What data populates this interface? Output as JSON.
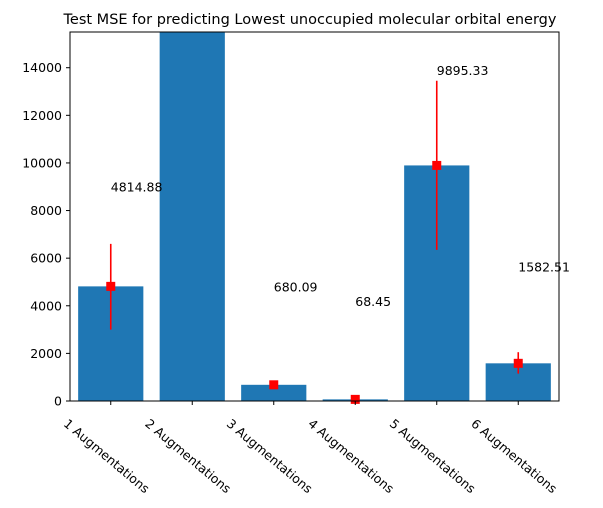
{
  "chart_data": {
    "type": "bar",
    "title": "Test MSE for predicting Lowest unoccupied molecular orbital energy",
    "xlabel": "",
    "ylabel": "",
    "categories": [
      "1 Augmentations",
      "2 Augmentations",
      "3 Augmentations",
      "4 Augmentations",
      "5 Augmentations",
      "6 Augmentations"
    ],
    "values": [
      4814.88,
      15500,
      680.09,
      68.45,
      9895.33,
      1582.51
    ],
    "error_low": [
      3000,
      15500,
      560,
      20,
      6350,
      1150
    ],
    "error_high": [
      6600,
      15500,
      820,
      120,
      13450,
      2050
    ],
    "data_labels": [
      "4814.88",
      "",
      "680.09",
      "68.45",
      "9895.33",
      "1582.51"
    ],
    "data_label_y": [
      8800,
      null,
      4600,
      4000,
      13700,
      5450
    ],
    "ylim": [
      0,
      15500
    ],
    "yticks": [
      0,
      2000,
      4000,
      6000,
      8000,
      10000,
      12000,
      14000
    ],
    "grid": false,
    "legend": "none",
    "bar_color": "#1f77b4",
    "error_color": "#ff0000"
  }
}
